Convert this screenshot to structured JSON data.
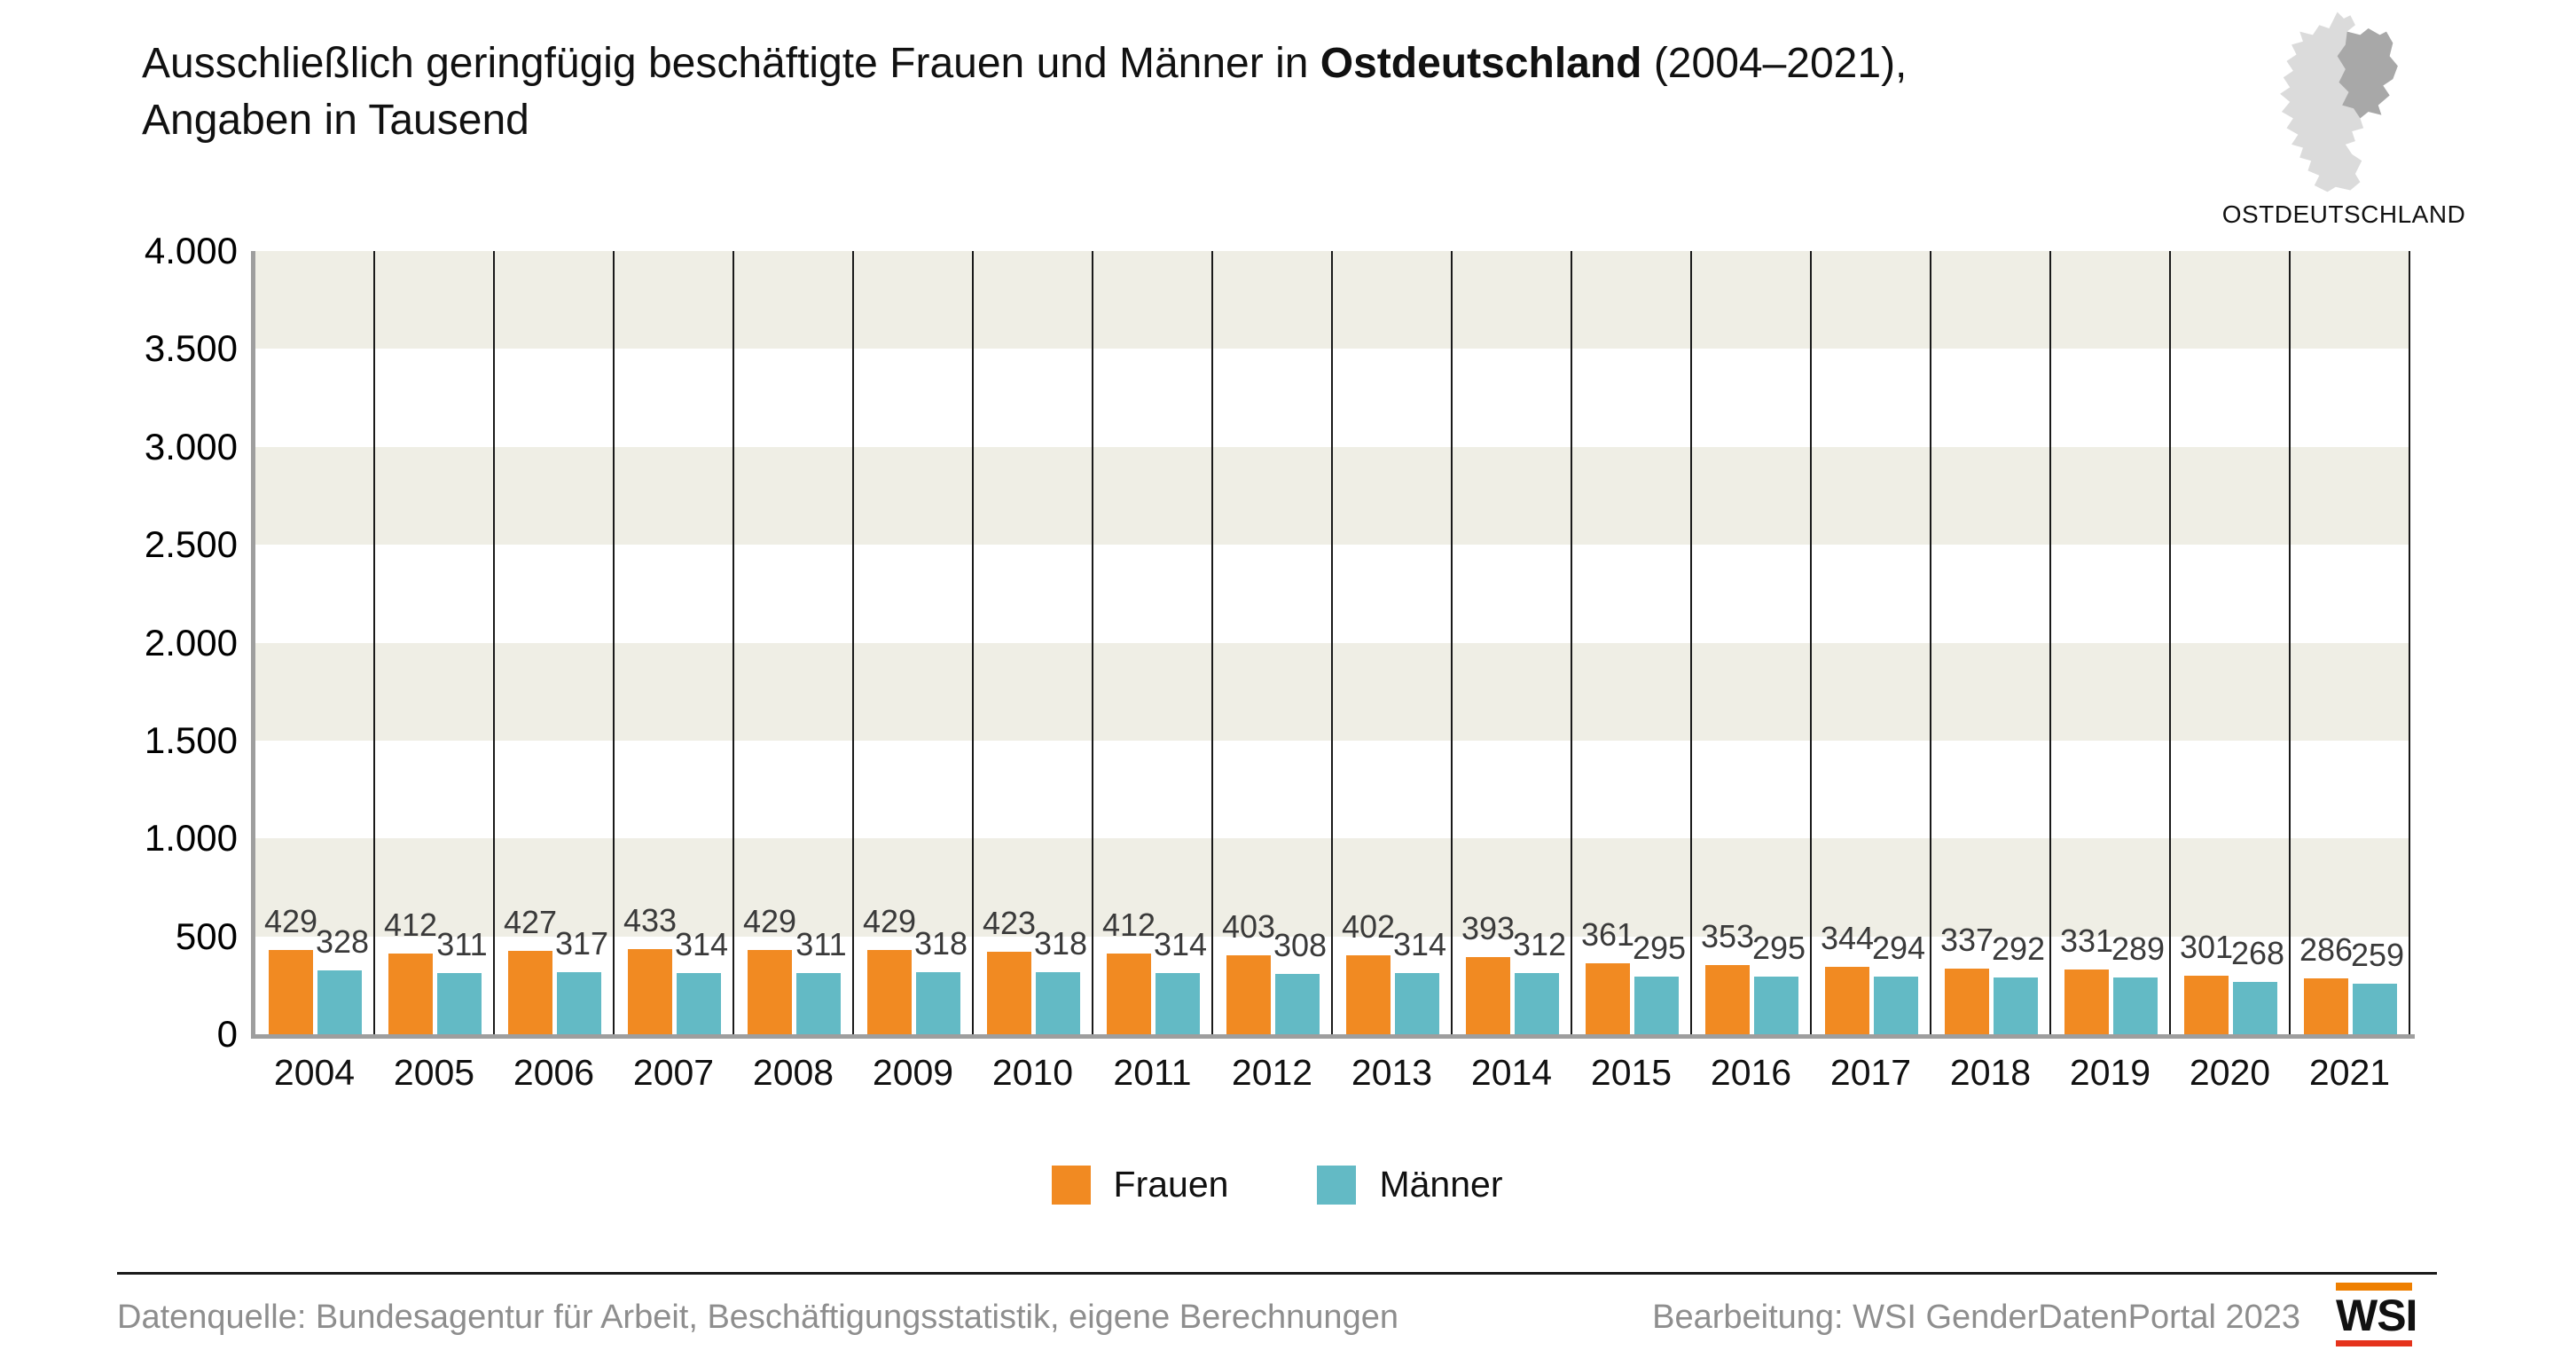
{
  "title": {
    "line1_prefix": "Ausschließlich geringfügig beschäftigte Frauen und Männer in ",
    "line1_bold": "Ostdeutschland",
    "line1_suffix": " (2004–2021),",
    "line2": "Angaben in Tausend"
  },
  "map": {
    "caption": "OSTDEUTSCHLAND"
  },
  "chart_data": {
    "type": "bar",
    "title": "Ausschließlich geringfügig beschäftigte Frauen und Männer in Ostdeutschland (2004–2021), Angaben in Tausend",
    "categories": [
      "2004",
      "2005",
      "2006",
      "2007",
      "2008",
      "2009",
      "2010",
      "2011",
      "2012",
      "2013",
      "2014",
      "2015",
      "2016",
      "2017",
      "2018",
      "2019",
      "2020",
      "2021"
    ],
    "series": [
      {
        "name": "Frauen",
        "color": "#F18A22",
        "values": [
          429,
          412,
          427,
          433,
          429,
          429,
          423,
          412,
          403,
          402,
          393,
          361,
          353,
          344,
          337,
          331,
          301,
          286
        ]
      },
      {
        "name": "Männer",
        "color": "#63BAC5",
        "values": [
          328,
          311,
          317,
          314,
          311,
          318,
          318,
          314,
          308,
          314,
          312,
          295,
          295,
          294,
          292,
          289,
          268,
          259
        ]
      }
    ],
    "ylim": [
      0,
      4000
    ],
    "ytick_labels": [
      "4.000",
      "3.500",
      "3.000",
      "2.500",
      "2.000",
      "1.500",
      "1.000",
      "500",
      "0"
    ],
    "grid": "alternating horizontal bands every 500, vertical separators per year",
    "legend_position": "bottom-center",
    "value_labels": "shown above each bar"
  },
  "colors": {
    "band_beige": "#EFEEE5",
    "separator": "#1a1a1a",
    "axis_gray": "#9E9E9E",
    "footer_gray": "#8E8E8E",
    "map_light": "#DBDBDB",
    "map_dark": "#A8A8A8",
    "wsi_orange": "#EE7F00",
    "wsi_red": "#E5331C"
  },
  "footer": {
    "left": "Datenquelle: Bundesagentur für Arbeit, Beschäftigungsstatistik, eigene Berechnungen",
    "right": "Bearbeitung: WSI GenderDatenPortal 2023",
    "logo_text": "WSI"
  }
}
